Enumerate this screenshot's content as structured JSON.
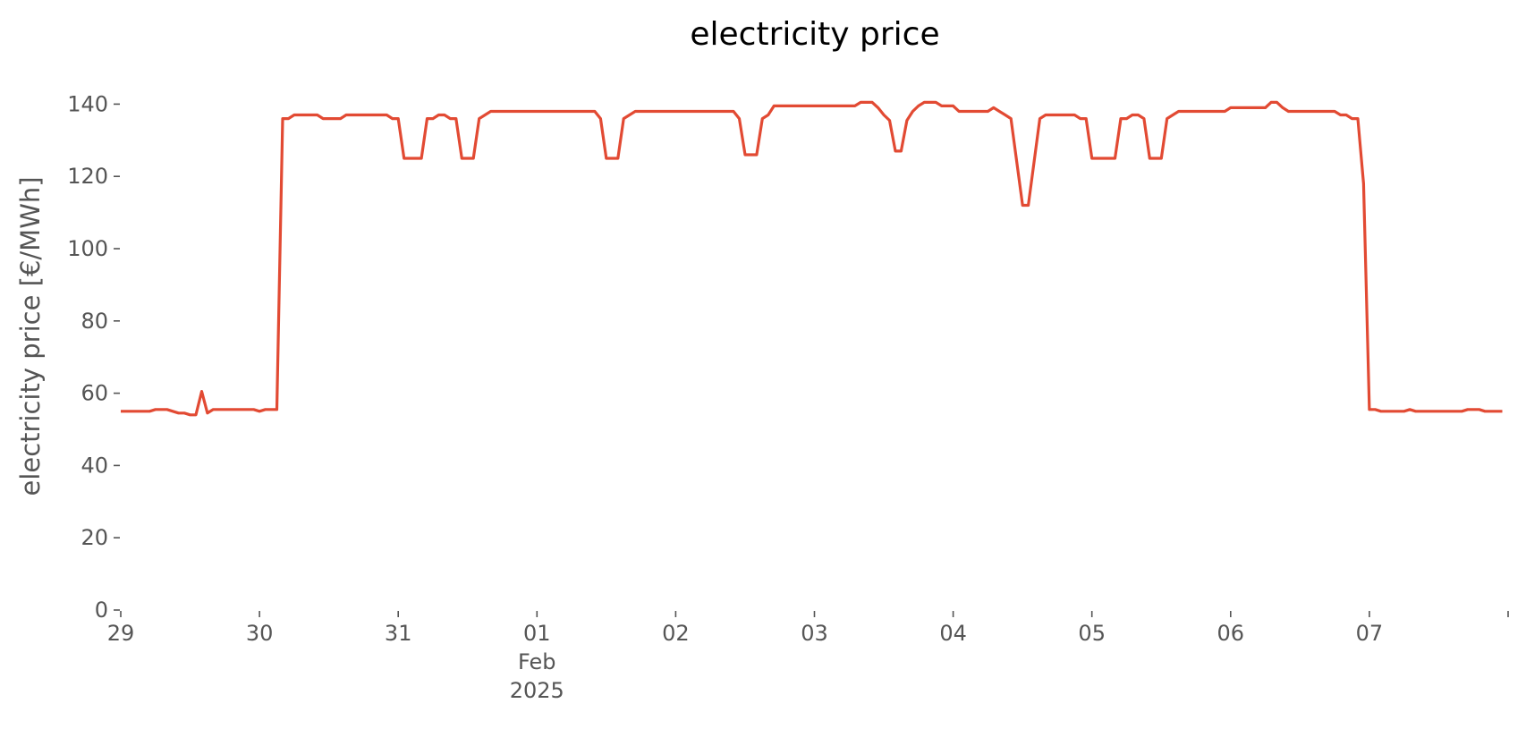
{
  "chart_data": {
    "type": "line",
    "title": "electricity price",
    "xlabel": "",
    "ylabel": "electricity price [€/MWh]",
    "x_unit": "hour",
    "x_start": "2025-01-29T00:00",
    "ylim": [
      0,
      150
    ],
    "y_ticks": [
      0,
      20,
      40,
      60,
      80,
      100,
      120,
      140
    ],
    "x_ticks": [
      {
        "x": "2025-01-29T00:00",
        "label": "29"
      },
      {
        "x": "2025-01-30T00:00",
        "label": "30"
      },
      {
        "x": "2025-01-31T00:00",
        "label": "31"
      },
      {
        "x": "2025-02-01T00:00",
        "label": "01",
        "label2": "Feb",
        "label3": "2025"
      },
      {
        "x": "2025-02-02T00:00",
        "label": "02"
      },
      {
        "x": "2025-02-03T00:00",
        "label": "03"
      },
      {
        "x": "2025-02-04T00:00",
        "label": "04"
      },
      {
        "x": "2025-02-05T00:00",
        "label": "05"
      },
      {
        "x": "2025-02-06T00:00",
        "label": "06"
      },
      {
        "x": "2025-02-07T00:00",
        "label": "07"
      },
      {
        "x": "2025-02-08T00:00",
        "label": ""
      }
    ],
    "grid": false,
    "series": [
      {
        "color": "#e24a33",
        "points": [
          [
            "2025-01-29T00:00",
            55
          ],
          [
            "2025-01-29T05:00",
            55
          ],
          [
            "2025-01-29T06:00",
            55.5
          ],
          [
            "2025-01-29T08:00",
            55.5
          ],
          [
            "2025-01-29T10:00",
            54.5
          ],
          [
            "2025-01-29T11:00",
            54.5
          ],
          [
            "2025-01-29T12:00",
            54
          ],
          [
            "2025-01-29T13:00",
            54
          ],
          [
            "2025-01-29T14:00",
            60.5
          ],
          [
            "2025-01-29T15:00",
            54.5
          ],
          [
            "2025-01-29T16:00",
            55.5
          ],
          [
            "2025-01-29T23:00",
            55.5
          ],
          [
            "2025-01-30T00:00",
            55
          ],
          [
            "2025-01-30T01:00",
            55.5
          ],
          [
            "2025-01-30T03:00",
            55.5
          ],
          [
            "2025-01-30T04:00",
            136
          ],
          [
            "2025-01-30T05:00",
            136
          ],
          [
            "2025-01-30T06:00",
            137
          ],
          [
            "2025-01-30T10:00",
            137
          ],
          [
            "2025-01-30T11:00",
            136
          ],
          [
            "2025-01-30T14:00",
            136
          ],
          [
            "2025-01-30T15:00",
            137
          ],
          [
            "2025-01-30T22:00",
            137
          ],
          [
            "2025-01-30T23:00",
            136
          ],
          [
            "2025-01-31T00:00",
            136
          ],
          [
            "2025-01-31T01:00",
            125
          ],
          [
            "2025-01-31T04:00",
            125
          ],
          [
            "2025-01-31T05:00",
            136
          ],
          [
            "2025-01-31T06:00",
            136
          ],
          [
            "2025-01-31T07:00",
            137
          ],
          [
            "2025-01-31T08:00",
            137
          ],
          [
            "2025-01-31T09:00",
            136
          ],
          [
            "2025-01-31T10:00",
            136
          ],
          [
            "2025-01-31T11:00",
            125
          ],
          [
            "2025-01-31T13:00",
            125
          ],
          [
            "2025-01-31T14:00",
            136
          ],
          [
            "2025-01-31T16:00",
            138
          ],
          [
            "2025-02-01T10:00",
            138
          ],
          [
            "2025-02-01T11:00",
            136
          ],
          [
            "2025-02-01T12:00",
            125
          ],
          [
            "2025-02-01T14:00",
            125
          ],
          [
            "2025-02-01T15:00",
            136
          ],
          [
            "2025-02-01T17:00",
            138
          ],
          [
            "2025-02-02T10:00",
            138
          ],
          [
            "2025-02-02T11:00",
            136
          ],
          [
            "2025-02-02T12:00",
            126
          ],
          [
            "2025-02-02T14:00",
            126
          ],
          [
            "2025-02-02T15:00",
            136
          ],
          [
            "2025-02-02T16:00",
            137
          ],
          [
            "2025-02-02T17:00",
            139.5
          ],
          [
            "2025-02-03T07:00",
            139.5
          ],
          [
            "2025-02-03T08:00",
            140.5
          ],
          [
            "2025-02-03T10:00",
            140.5
          ],
          [
            "2025-02-03T11:00",
            139
          ],
          [
            "2025-02-03T12:00",
            137
          ],
          [
            "2025-02-03T13:00",
            135.5
          ],
          [
            "2025-02-03T14:00",
            127
          ],
          [
            "2025-02-03T15:00",
            127
          ],
          [
            "2025-02-03T16:00",
            135.5
          ],
          [
            "2025-02-03T17:00",
            138
          ],
          [
            "2025-02-03T18:00",
            139.5
          ],
          [
            "2025-02-03T19:00",
            140.5
          ],
          [
            "2025-02-03T21:00",
            140.5
          ],
          [
            "2025-02-03T22:00",
            139.5
          ],
          [
            "2025-02-04T00:00",
            139.5
          ],
          [
            "2025-02-04T01:00",
            138
          ],
          [
            "2025-02-04T06:00",
            138
          ],
          [
            "2025-02-04T07:00",
            139
          ],
          [
            "2025-02-04T08:00",
            138
          ],
          [
            "2025-02-04T09:00",
            137
          ],
          [
            "2025-02-04T10:00",
            136
          ],
          [
            "2025-02-04T12:00",
            112
          ],
          [
            "2025-02-04T13:00",
            112
          ],
          [
            "2025-02-04T15:00",
            136
          ],
          [
            "2025-02-04T16:00",
            137
          ],
          [
            "2025-02-04T21:00",
            137
          ],
          [
            "2025-02-04T22:00",
            136
          ],
          [
            "2025-02-04T23:00",
            136
          ],
          [
            "2025-02-05T00:00",
            125
          ],
          [
            "2025-02-05T04:00",
            125
          ],
          [
            "2025-02-05T05:00",
            136
          ],
          [
            "2025-02-05T06:00",
            136
          ],
          [
            "2025-02-05T07:00",
            137
          ],
          [
            "2025-02-05T08:00",
            137
          ],
          [
            "2025-02-05T09:00",
            136
          ],
          [
            "2025-02-05T10:00",
            125
          ],
          [
            "2025-02-05T12:00",
            125
          ],
          [
            "2025-02-05T13:00",
            136
          ],
          [
            "2025-02-05T14:00",
            137
          ],
          [
            "2025-02-05T15:00",
            138
          ],
          [
            "2025-02-05T23:00",
            138
          ],
          [
            "2025-02-06T00:00",
            139
          ],
          [
            "2025-02-06T03:00",
            139
          ],
          [
            "2025-02-06T06:00",
            139
          ],
          [
            "2025-02-06T07:00",
            140.5
          ],
          [
            "2025-02-06T08:00",
            140.5
          ],
          [
            "2025-02-06T09:00",
            139
          ],
          [
            "2025-02-06T10:00",
            138
          ],
          [
            "2025-02-06T18:00",
            138
          ],
          [
            "2025-02-06T19:00",
            137
          ],
          [
            "2025-02-06T20:00",
            137
          ],
          [
            "2025-02-06T21:00",
            136
          ],
          [
            "2025-02-06T22:00",
            136
          ],
          [
            "2025-02-06T23:00",
            118
          ],
          [
            "2025-02-07T00:00",
            55.5
          ],
          [
            "2025-02-07T01:00",
            55.5
          ],
          [
            "2025-02-07T02:00",
            55
          ],
          [
            "2025-02-07T06:00",
            55
          ],
          [
            "2025-02-07T07:00",
            55.5
          ],
          [
            "2025-02-07T08:00",
            55
          ],
          [
            "2025-02-07T16:00",
            55
          ],
          [
            "2025-02-07T17:00",
            55.5
          ],
          [
            "2025-02-07T19:00",
            55.5
          ],
          [
            "2025-02-07T20:00",
            55
          ],
          [
            "2025-02-07T23:00",
            55
          ]
        ]
      }
    ]
  }
}
